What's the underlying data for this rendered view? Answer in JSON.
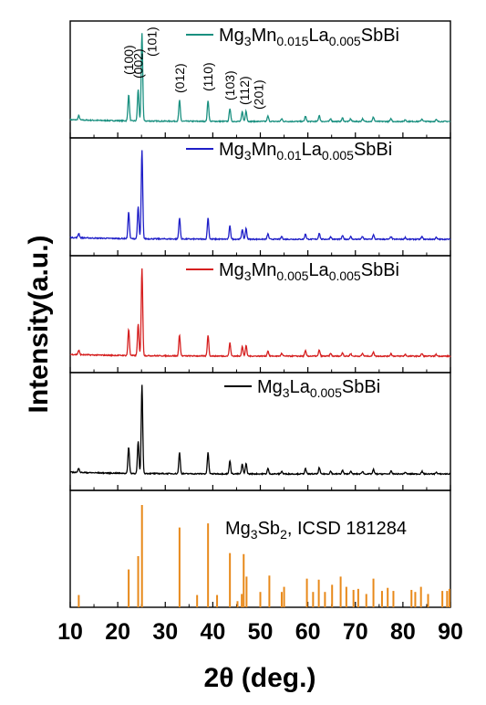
{
  "chart_data": {
    "type": "line",
    "xlabel": "2θ (deg.)",
    "ylabel": "Intensity(a.u.)",
    "xlim": [
      10,
      90
    ],
    "xticks": [
      10,
      20,
      30,
      40,
      50,
      60,
      70,
      80,
      90
    ],
    "stacked_panels": true,
    "grid": false,
    "legend_placement": "top-right of each panel",
    "peaks_common": [
      {
        "x": 11.8,
        "h": 0.05
      },
      {
        "x": 22.3,
        "h": 0.3
      },
      {
        "x": 24.3,
        "h": 0.36
      },
      {
        "x": 25.1,
        "h": 1.0
      },
      {
        "x": 33.0,
        "h": 0.24
      },
      {
        "x": 39.0,
        "h": 0.24
      },
      {
        "x": 43.6,
        "h": 0.15
      },
      {
        "x": 46.2,
        "h": 0.11
      },
      {
        "x": 47.0,
        "h": 0.12
      },
      {
        "x": 51.6,
        "h": 0.06
      },
      {
        "x": 54.5,
        "h": 0.03
      },
      {
        "x": 59.5,
        "h": 0.06
      },
      {
        "x": 62.4,
        "h": 0.07
      },
      {
        "x": 64.8,
        "h": 0.03
      },
      {
        "x": 67.3,
        "h": 0.04
      },
      {
        "x": 69.0,
        "h": 0.03
      },
      {
        "x": 71.5,
        "h": 0.03
      },
      {
        "x": 73.8,
        "h": 0.05
      },
      {
        "x": 77.5,
        "h": 0.03
      },
      {
        "x": 80.5,
        "h": 0.02
      },
      {
        "x": 84.0,
        "h": 0.03
      },
      {
        "x": 87.0,
        "h": 0.02
      }
    ],
    "series": [
      {
        "name": "Mg3Mn0.015La0.005SbBi",
        "legend": {
          "pre": "Mg",
          "s1": "3",
          "mid": "Mn",
          "s2": "0.015",
          "mid2": "La",
          "s3": "0.005",
          "post": "SbBi"
        },
        "color": "#1a9080",
        "peak_scale": 1.0
      },
      {
        "name": "Mg3Mn0.01La0.005SbBi",
        "legend": {
          "pre": "Mg",
          "s1": "3",
          "mid": "Mn",
          "s2": "0.01",
          "mid2": "La",
          "s3": "0.005",
          "post": "SbBi"
        },
        "color": "#1f1fc8",
        "peak_scale": 1.0
      },
      {
        "name": "Mg3Mn0.005La0.005SbBi",
        "legend": {
          "pre": "Mg",
          "s1": "3",
          "mid": "Mn",
          "s2": "0.005",
          "mid2": "La",
          "s3": "0.005",
          "post": "SbBi"
        },
        "color": "#d62020",
        "peak_scale": 1.0
      },
      {
        "name": "Mg3La0.005SbBi",
        "legend": {
          "pre": "Mg",
          "s1": "3",
          "mid": "",
          "s2": "",
          "mid2": "La",
          "s3": "0.005",
          "post": "SbBi"
        },
        "color": "#000000",
        "peak_scale": 1.0
      }
    ],
    "hkl_labels": [
      {
        "x": 22.3,
        "text": "(100)"
      },
      {
        "x": 24.3,
        "text": "(002)"
      },
      {
        "x": 27.2,
        "text": "(101)"
      },
      {
        "x": 33.0,
        "text": "(012)"
      },
      {
        "x": 39.0,
        "text": "(110)"
      },
      {
        "x": 43.6,
        "text": "(103)"
      },
      {
        "x": 46.6,
        "text": "(112)"
      },
      {
        "x": 49.6,
        "text": "(201)"
      }
    ],
    "reference": {
      "name": "Mg3Sb2, ICSD 181284",
      "legend": {
        "pre": "Mg",
        "s1": "3",
        "mid": "Sb",
        "s2": "2",
        "post": ", ICSD 181284"
      },
      "color": "#e8891a",
      "lines": [
        {
          "x": 11.8,
          "h": 0.12
        },
        {
          "x": 22.3,
          "h": 0.37
        },
        {
          "x": 24.3,
          "h": 0.5
        },
        {
          "x": 25.1,
          "h": 1.0
        },
        {
          "x": 33.0,
          "h": 0.78
        },
        {
          "x": 36.7,
          "h": 0.12
        },
        {
          "x": 39.0,
          "h": 0.82
        },
        {
          "x": 40.9,
          "h": 0.12
        },
        {
          "x": 43.6,
          "h": 0.53
        },
        {
          "x": 45.2,
          "h": 0.06
        },
        {
          "x": 46.1,
          "h": 0.13
        },
        {
          "x": 46.5,
          "h": 0.52
        },
        {
          "x": 47.1,
          "h": 0.3
        },
        {
          "x": 50.0,
          "h": 0.15
        },
        {
          "x": 51.9,
          "h": 0.31
        },
        {
          "x": 54.5,
          "h": 0.15
        },
        {
          "x": 55.0,
          "h": 0.2
        },
        {
          "x": 59.8,
          "h": 0.28
        },
        {
          "x": 61.1,
          "h": 0.15
        },
        {
          "x": 62.3,
          "h": 0.27
        },
        {
          "x": 63.6,
          "h": 0.15
        },
        {
          "x": 65.1,
          "h": 0.22
        },
        {
          "x": 66.9,
          "h": 0.3
        },
        {
          "x": 68.1,
          "h": 0.2
        },
        {
          "x": 69.6,
          "h": 0.17
        },
        {
          "x": 70.6,
          "h": 0.18
        },
        {
          "x": 72.3,
          "h": 0.13
        },
        {
          "x": 73.8,
          "h": 0.28
        },
        {
          "x": 75.6,
          "h": 0.16
        },
        {
          "x": 76.8,
          "h": 0.19
        },
        {
          "x": 78.0,
          "h": 0.16
        },
        {
          "x": 81.8,
          "h": 0.17
        },
        {
          "x": 82.6,
          "h": 0.15
        },
        {
          "x": 83.8,
          "h": 0.2
        },
        {
          "x": 85.3,
          "h": 0.13
        },
        {
          "x": 88.3,
          "h": 0.16
        },
        {
          "x": 89.3,
          "h": 0.16
        },
        {
          "x": 89.8,
          "h": 0.18
        }
      ]
    }
  }
}
